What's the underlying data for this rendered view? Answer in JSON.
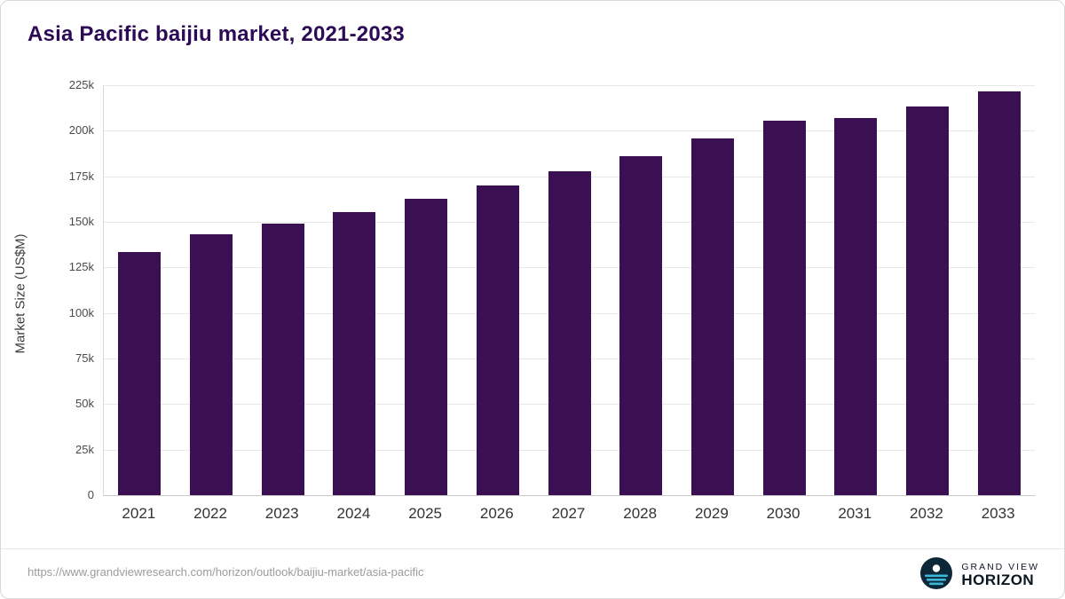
{
  "title": "Asia Pacific baijiu market, 2021-2033",
  "footer": {
    "source_url": "https://www.grandviewresearch.com/horizon/outlook/baijiu-market/asia-pacific"
  },
  "logo": {
    "line1": "GRAND VIEW",
    "line2": "HORIZON",
    "circle_color": "#0c2738",
    "stripe_color": "#3db7d9"
  },
  "colors": {
    "bar": "#3b1053",
    "title": "#2d0a56",
    "gridline": "#e8e8e8",
    "axis_text": "#4a4a4a"
  },
  "chart_data": {
    "type": "bar",
    "title": "Asia Pacific baijiu market, 2021-2033",
    "categories": [
      "2021",
      "2022",
      "2023",
      "2024",
      "2025",
      "2026",
      "2027",
      "2028",
      "2029",
      "2030",
      "2031",
      "2032",
      "2033"
    ],
    "values": [
      133500,
      143000,
      149000,
      155500,
      162500,
      170000,
      178000,
      186000,
      196000,
      205500,
      207000,
      213500,
      221500
    ],
    "xlabel": "",
    "ylabel": "Market Size (US$M)",
    "ylim": [
      0,
      225000
    ],
    "ytick_step": 25000,
    "ytick_format": "thousands-k",
    "grid": "horizontal",
    "legend": "none",
    "bar_color": "#3b1053"
  }
}
